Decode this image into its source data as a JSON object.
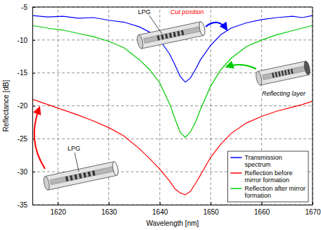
{
  "chart_data": {
    "type": "line",
    "x_label": "Wavelength [nm]",
    "y_label": "Reflectance [dB]",
    "annotations": [
      "LPG",
      "Cut position",
      "Reflecting layer",
      "LPG"
    ],
    "x": [
      1615,
      1618,
      1621,
      1624,
      1627,
      1630,
      1633,
      1636,
      1638,
      1640,
      1642,
      1643,
      1644,
      1645,
      1646,
      1647,
      1648,
      1650,
      1652,
      1654,
      1657,
      1660,
      1663,
      1666,
      1668,
      1670
    ],
    "series": [
      {
        "name": "Transmission spectrum",
        "color": "#0000ff",
        "values": [
          -6.3,
          -6.5,
          -6.4,
          -6.7,
          -6.6,
          -7.0,
          -7.3,
          -8.0,
          -8.8,
          -10.0,
          -12.2,
          -13.8,
          -15.5,
          -16.4,
          -15.8,
          -14.5,
          -13.0,
          -10.8,
          -9.2,
          -8.2,
          -7.4,
          -6.9,
          -6.6,
          -6.4,
          -6.6,
          -6.3
        ]
      },
      {
        "name": "Reflection before mirror formation",
        "color": "#ff0000",
        "values": [
          -19.0,
          -19.8,
          -20.6,
          -21.4,
          -22.3,
          -23.3,
          -24.6,
          -26.5,
          -28.0,
          -29.6,
          -31.5,
          -32.6,
          -33.2,
          -33.5,
          -33.0,
          -31.8,
          -30.5,
          -27.8,
          -25.8,
          -24.2,
          -22.6,
          -21.6,
          -20.8,
          -20.2,
          -19.8,
          -19.3
        ]
      },
      {
        "name": "Reflection after mirror formation",
        "color": "#00cc00",
        "values": [
          -7.8,
          -8.2,
          -8.5,
          -9.0,
          -9.5,
          -10.2,
          -11.2,
          -13.0,
          -14.5,
          -16.5,
          -19.8,
          -22.0,
          -24.0,
          -24.8,
          -24.0,
          -22.5,
          -20.5,
          -17.0,
          -14.5,
          -12.8,
          -11.0,
          -10.0,
          -9.2,
          -8.6,
          -8.2,
          -7.8
        ]
      }
    ],
    "xlim": [
      1615,
      1670
    ],
    "xticks": [
      1620,
      1630,
      1640,
      1650,
      1660,
      1670
    ],
    "ylim": [
      -35,
      -5
    ],
    "yticks": [
      -35,
      -30,
      -25,
      -20,
      -15,
      -10,
      -5
    ],
    "grid": true,
    "legend": "lower right"
  }
}
